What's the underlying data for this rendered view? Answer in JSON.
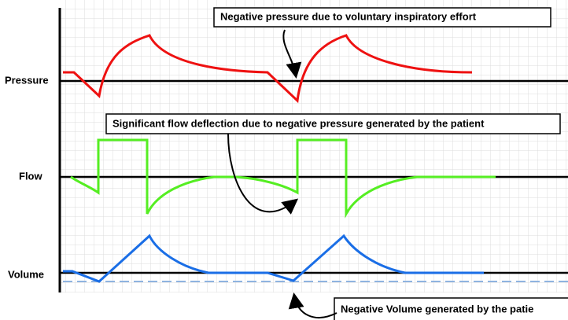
{
  "traces": [
    {
      "label": "Pressure"
    },
    {
      "label": "Flow"
    },
    {
      "label": "Volume"
    }
  ],
  "annotations": [
    {
      "text": "Negative pressure  due to voluntary inspiratory effort"
    },
    {
      "text": "Significant flow deflection due to negative pressure generated by the patient"
    },
    {
      "text": "Negative Volume generated by the patie"
    }
  ]
}
